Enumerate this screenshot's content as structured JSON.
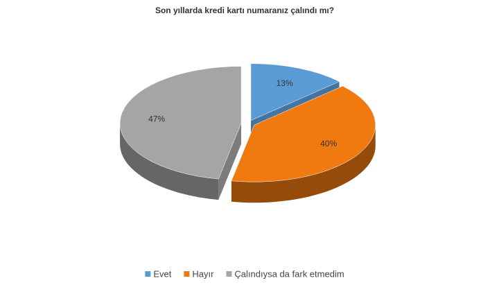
{
  "chart_data": {
    "type": "pie",
    "title": "Son yıllarda kredi kartı numaranız çalındı mı?",
    "categories": [
      "Evet",
      "Hayır",
      "Çalındıysa da fark etmedim"
    ],
    "values": [
      13,
      40,
      47
    ],
    "value_labels": [
      "13%",
      "40%",
      "47%"
    ],
    "colors": [
      "#5b9bd5",
      "#f07a10",
      "#a5a5a5"
    ],
    "legend": "bottom"
  }
}
